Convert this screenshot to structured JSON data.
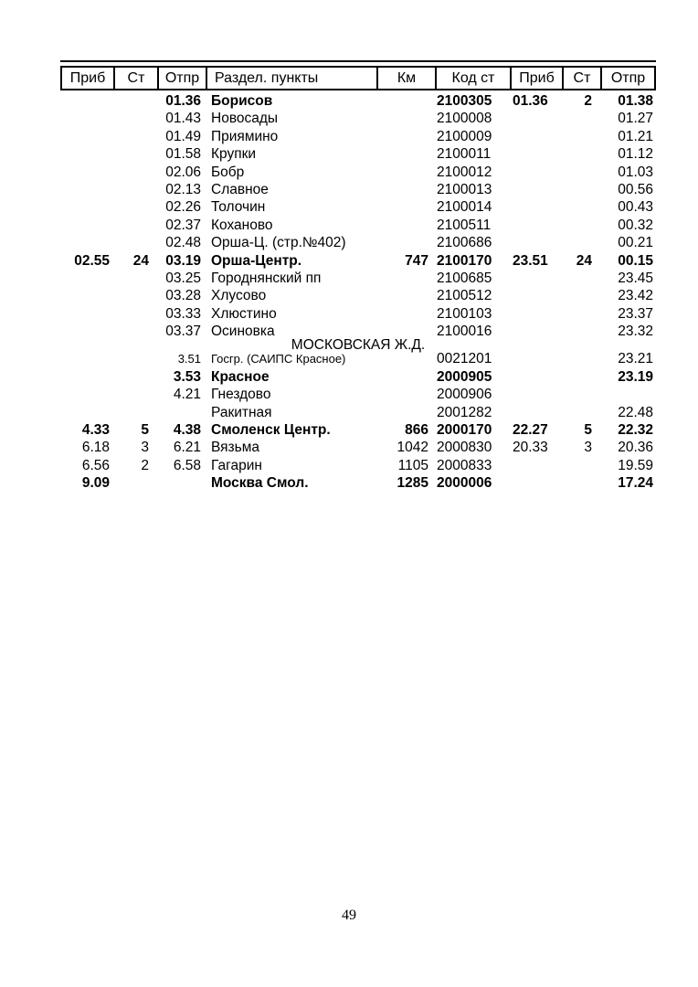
{
  "page": {
    "number": "49"
  },
  "colors": {
    "text": "#000000",
    "background": "#ffffff",
    "border": "#000000"
  },
  "table": {
    "headers": [
      "Приб",
      "Ст",
      "Отпр",
      "Раздел. пункты",
      "Км",
      "Код ст",
      "Приб",
      "Ст",
      "Отпр"
    ],
    "rows": [
      {
        "type": "bold",
        "prib1": "",
        "st1": "",
        "otpr1": "01.36",
        "name": "Борисов",
        "km": "",
        "kod": "2100305",
        "prib2": "01.36",
        "st2": "2",
        "otpr2": "01.38"
      },
      {
        "type": "normal",
        "prib1": "",
        "st1": "",
        "otpr1": "01.43",
        "name": "Новосады",
        "km": "",
        "kod": "2100008",
        "prib2": "",
        "st2": "",
        "otpr2": "01.27"
      },
      {
        "type": "normal",
        "prib1": "",
        "st1": "",
        "otpr1": "01.49",
        "name": "Приямино",
        "km": "",
        "kod": "2100009",
        "prib2": "",
        "st2": "",
        "otpr2": "01.21"
      },
      {
        "type": "normal",
        "prib1": "",
        "st1": "",
        "otpr1": "01.58",
        "name": "Крупки",
        "km": "",
        "kod": "2100011",
        "prib2": "",
        "st2": "",
        "otpr2": "01.12"
      },
      {
        "type": "normal",
        "prib1": "",
        "st1": "",
        "otpr1": "02.06",
        "name": "Бобр",
        "km": "",
        "kod": "2100012",
        "prib2": "",
        "st2": "",
        "otpr2": "01.03"
      },
      {
        "type": "normal",
        "prib1": "",
        "st1": "",
        "otpr1": "02.13",
        "name": "Славное",
        "km": "",
        "kod": "2100013",
        "prib2": "",
        "st2": "",
        "otpr2": "00.56"
      },
      {
        "type": "normal",
        "prib1": "",
        "st1": "",
        "otpr1": "02.26",
        "name": "Толочин",
        "km": "",
        "kod": "2100014",
        "prib2": "",
        "st2": "",
        "otpr2": "00.43"
      },
      {
        "type": "normal",
        "prib1": "",
        "st1": "",
        "otpr1": "02.37",
        "name": "Коханово",
        "km": "",
        "kod": "2100511",
        "prib2": "",
        "st2": "",
        "otpr2": "00.32"
      },
      {
        "type": "normal",
        "prib1": "",
        "st1": "",
        "otpr1": "02.48",
        "name": "Орша-Ц. (стр.№402)",
        "km": "",
        "kod": "2100686",
        "prib2": "",
        "st2": "",
        "otpr2": "00.21"
      },
      {
        "type": "bold",
        "prib1": "02.55",
        "st1": "24",
        "otpr1": "03.19",
        "name": "Орша-Центр.",
        "km": "747",
        "kod": "2100170",
        "prib2": "23.51",
        "st2": "24",
        "otpr2": "00.15"
      },
      {
        "type": "normal",
        "prib1": "",
        "st1": "",
        "otpr1": "03.25",
        "name": "Городнянский пп",
        "km": "",
        "kod": "2100685",
        "prib2": "",
        "st2": "",
        "otpr2": "23.45"
      },
      {
        "type": "normal",
        "prib1": "",
        "st1": "",
        "otpr1": "03.28",
        "name": "Хлусово",
        "km": "",
        "kod": "2100512",
        "prib2": "",
        "st2": "",
        "otpr2": "23.42"
      },
      {
        "type": "normal",
        "prib1": "",
        "st1": "",
        "otpr1": "03.33",
        "name": "Хлюстино",
        "km": "",
        "kod": "2100103",
        "prib2": "",
        "st2": "",
        "otpr2": "23.37"
      },
      {
        "type": "normal",
        "prib1": "",
        "st1": "",
        "otpr1": "03.37",
        "name": "Осиновка",
        "km": "",
        "kod": "2100016",
        "prib2": "",
        "st2": "",
        "otpr2": "23.32"
      },
      {
        "type": "section",
        "label": "МОСКОВСКАЯ Ж.Д."
      },
      {
        "type": "small",
        "prib1": "",
        "st1": "",
        "otpr1": "3.51",
        "name": "Госгр. (САИПС Красное)",
        "km": "",
        "kod": "0021201",
        "prib2": "",
        "st2": "",
        "otpr2": "23.21"
      },
      {
        "type": "bold",
        "prib1": "",
        "st1": "",
        "otpr1": "3.53",
        "name": "Красное",
        "km": "",
        "kod": "2000905",
        "prib2": "",
        "st2": "",
        "otpr2": "23.19"
      },
      {
        "type": "normal",
        "prib1": "",
        "st1": "",
        "otpr1": "4.21",
        "name": "Гнездово",
        "km": "",
        "kod": "2000906",
        "prib2": "",
        "st2": "",
        "otpr2": ""
      },
      {
        "type": "normal",
        "prib1": "",
        "st1": "",
        "otpr1": "",
        "name": "Ракитная",
        "km": "",
        "kod": "2001282",
        "prib2": "",
        "st2": "",
        "otpr2": "22.48"
      },
      {
        "type": "bold",
        "prib1": "4.33",
        "st1": "5",
        "otpr1": "4.38",
        "name": "Смоленск Центр.",
        "km": "866",
        "kod": "2000170",
        "prib2": "22.27",
        "st2": "5",
        "otpr2": "22.32"
      },
      {
        "type": "normal",
        "prib1": "6.18",
        "st1": "3",
        "otpr1": "6.21",
        "name": "Вязьма",
        "km": "1042",
        "kod": "2000830",
        "prib2": "20.33",
        "st2": "3",
        "otpr2": "20.36"
      },
      {
        "type": "normal",
        "prib1": "6.56",
        "st1": "2",
        "otpr1": "6.58",
        "name": "Гагарин",
        "km": "1105",
        "kod": "2000833",
        "prib2": "",
        "st2": "",
        "otpr2": "19.59"
      },
      {
        "type": "bold",
        "prib1": "9.09",
        "st1": "",
        "otpr1": "",
        "name": "Москва Смол.",
        "km": "1285",
        "kod": "2000006",
        "prib2": "",
        "st2": "",
        "otpr2": "17.24"
      }
    ]
  }
}
